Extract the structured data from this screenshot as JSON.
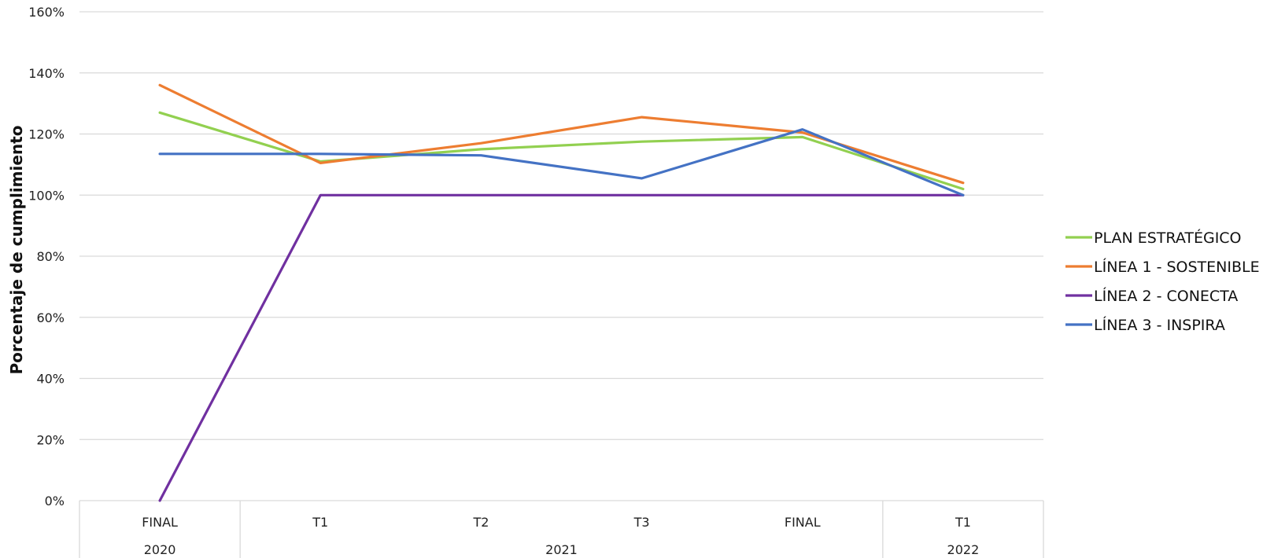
{
  "chart_data": {
    "type": "line",
    "title": "",
    "ylabel": "Porcentaje de cumplimiento",
    "xlabel": "",
    "ylim": [
      0,
      160
    ],
    "y_ticks": [
      0,
      20,
      40,
      60,
      80,
      100,
      120,
      140,
      160
    ],
    "y_tick_suffix": "%",
    "grid": true,
    "legend_position": "right",
    "categories": [
      "FINAL",
      "T1",
      "T2",
      "T3",
      "FINAL",
      "T1"
    ],
    "category_groups": [
      {
        "label": "2020",
        "span": 1
      },
      {
        "label": "2021",
        "span": 4
      },
      {
        "label": "2022",
        "span": 1
      }
    ],
    "series": [
      {
        "name": "PLAN ESTRATÉGICO",
        "color": "#92d050",
        "values": [
          127,
          111,
          115,
          117.5,
          119,
          102
        ]
      },
      {
        "name": "LÍNEA 1 - SOSTENIBLE",
        "color": "#ed7d31",
        "values": [
          136,
          110.5,
          117,
          125.5,
          120.5,
          104
        ]
      },
      {
        "name": "LÍNEA 2 - CONECTA",
        "color": "#7030a0",
        "values": [
          0,
          100,
          100,
          100,
          100,
          100
        ]
      },
      {
        "name": "LÍNEA 3 - INSPIRA",
        "color": "#4472c4",
        "values": [
          113.5,
          113.5,
          113,
          105.5,
          121.5,
          100
        ]
      }
    ]
  }
}
